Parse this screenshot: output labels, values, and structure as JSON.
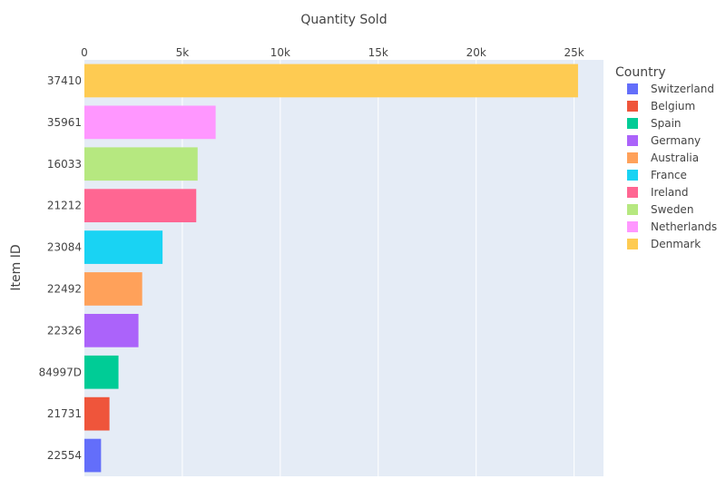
{
  "chart_data": {
    "type": "bar",
    "orientation": "horizontal",
    "title": "Quantity Sold",
    "xlabel": "",
    "ylabel": "Item ID",
    "xlim": [
      0,
      26500
    ],
    "x_ticks": [
      0,
      5000,
      10000,
      15000,
      20000,
      25000
    ],
    "x_tick_labels": [
      "0",
      "5k",
      "10k",
      "15k",
      "20k",
      "25k"
    ],
    "x_axis_position": "top",
    "grid": true,
    "legend": {
      "title": "Country",
      "placement": "right"
    },
    "categories": [
      "37410",
      "35961",
      "16033",
      "21212",
      "23084",
      "22492",
      "22326",
      "84997D",
      "21731",
      "22554"
    ],
    "series": [
      {
        "name": "Switzerland",
        "color": "#636efa",
        "category": "22554",
        "value": 850
      },
      {
        "name": "Belgium",
        "color": "#EF553B",
        "category": "21731",
        "value": 1280
      },
      {
        "name": "Spain",
        "color": "#00cc96",
        "category": "84997D",
        "value": 1740
      },
      {
        "name": "Germany",
        "color": "#ab63fa",
        "category": "22326",
        "value": 2760
      },
      {
        "name": "Australia",
        "color": "#FFA15A",
        "category": "22492",
        "value": 2950
      },
      {
        "name": "France",
        "color": "#19d3f3",
        "category": "23084",
        "value": 3990
      },
      {
        "name": "Ireland",
        "color": "#FF6692",
        "category": "21212",
        "value": 5710
      },
      {
        "name": "Sweden",
        "color": "#B6E880",
        "category": "16033",
        "value": 5780
      },
      {
        "name": "Netherlands",
        "color": "#FF97FF",
        "category": "35961",
        "value": 6700
      },
      {
        "name": "Denmark",
        "color": "#FECB52",
        "category": "37410",
        "value": 25200
      }
    ],
    "colors": {
      "plot_bg": "#E5ECF6",
      "grid": "#ffffff",
      "text": "#444444"
    }
  }
}
